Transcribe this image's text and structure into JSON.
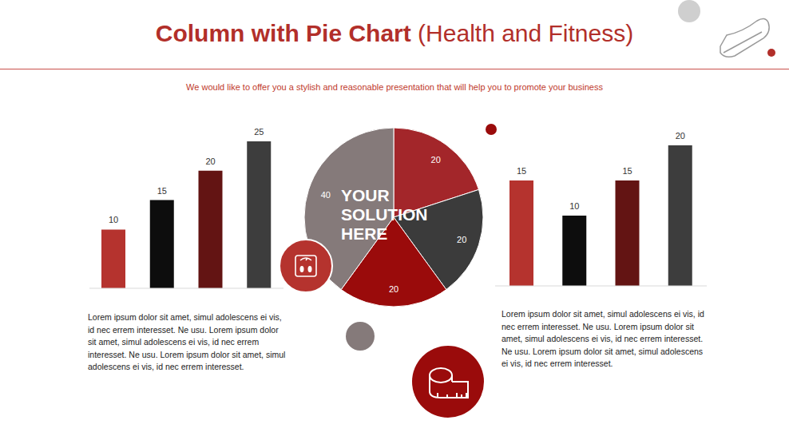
{
  "title": "Column with Pie Chart",
  "title_detail": "(Health and Fitness)",
  "subtitle": "We would like to offer you a stylish and reasonable presentation that will help you to promote your business",
  "chart_data": [
    {
      "type": "bar",
      "categories": [
        null,
        null,
        null,
        null
      ],
      "values": [
        10,
        15,
        20,
        25
      ],
      "colors": [
        "#b5332e",
        "#0d0d0d",
        "#631413",
        "#3d3d3d"
      ],
      "ylim": [
        0,
        25
      ],
      "data_labels": true,
      "tick_labels": false
    },
    {
      "type": "pie",
      "categories": [
        null,
        null,
        null,
        null
      ],
      "values": [
        20,
        20,
        20,
        40
      ],
      "colors": [
        "#a3262a",
        "#3b3b3b",
        "#9a0b0b",
        "#857a7a"
      ],
      "data_labels": true,
      "annotation": "YOUR SOLUTION HERE"
    },
    {
      "type": "bar",
      "categories": [
        null,
        null,
        null,
        null
      ],
      "values": [
        15,
        10,
        15,
        20
      ],
      "colors": [
        "#b5332e",
        "#0d0d0d",
        "#631413",
        "#3d3d3d"
      ],
      "ylim": [
        0,
        20
      ],
      "data_labels": true,
      "tick_labels": false
    }
  ],
  "paragraphs": [
    "Lorem ipsum dolor sit amet, simul adolescens ei vis, id nec errem interesset. Ne usu. Lorem ipsum dolor sit amet, simul adolescens ei vis, id nec errem interesset. Ne usu. Lorem ipsum dolor sit amet, simul adolescens ei vis, id nec errem interesset.",
    "Lorem ipsum dolor sit amet, simul adolescens ei vis, id nec errem interesset. Ne usu. Lorem ipsum dolor sit amet, simul adolescens ei vis, id nec errem interesset. Ne usu. Lorem ipsum dolor sit amet, simul adolescens ei vis, id nec errem interesset."
  ]
}
